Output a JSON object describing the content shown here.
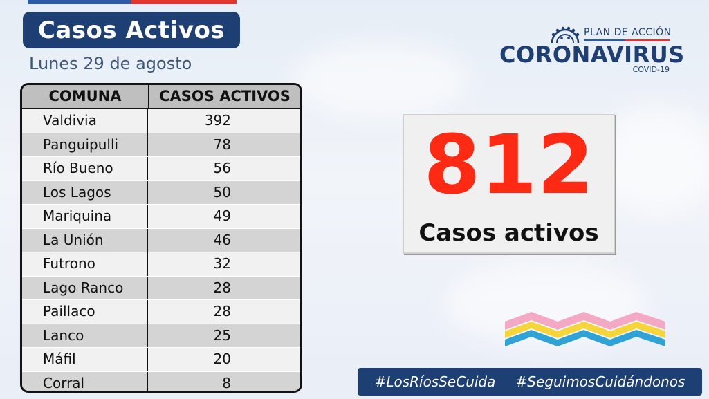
{
  "header": {
    "title": "Casos Activos",
    "date": "Lunes 29 de agosto"
  },
  "table": {
    "headers": [
      "COMUNA",
      "CASOS ACTIVOS"
    ],
    "rows": [
      {
        "comuna": "Valdivia",
        "casos": "392"
      },
      {
        "comuna": "Panguipulli",
        "casos": "78"
      },
      {
        "comuna": "Río Bueno",
        "casos": "56"
      },
      {
        "comuna": "Los Lagos",
        "casos": "50"
      },
      {
        "comuna": "Mariquina",
        "casos": "49"
      },
      {
        "comuna": "La Unión",
        "casos": "46"
      },
      {
        "comuna": "Futrono",
        "casos": "32"
      },
      {
        "comuna": "Lago Ranco",
        "casos": "28"
      },
      {
        "comuna": "Paillaco",
        "casos": "28"
      },
      {
        "comuna": "Lanco",
        "casos": "25"
      },
      {
        "comuna": "Máfil",
        "casos": "20"
      },
      {
        "comuna": "Corral",
        "casos": "8"
      }
    ]
  },
  "logo": {
    "plan": "PLAN DE ACCIÓN",
    "name": "CORONAVIRUS",
    "sub": "COVID-19",
    "icon": "virus-icon"
  },
  "summary": {
    "total": "812",
    "label": "Casos activos"
  },
  "hashtags": [
    "#LosRíosSeCuida",
    "#SeguimosCuidándonos"
  ],
  "colors": {
    "navy": "#1e3f73",
    "red": "#ff2a14",
    "row_light": "#f1f1f1",
    "row_dark": "#d4d4d4",
    "header_gray": "#bfbfbf",
    "wave_pink": "#f3a9c4",
    "wave_yellow": "#f6d53a",
    "wave_blue": "#2fa3d6"
  }
}
